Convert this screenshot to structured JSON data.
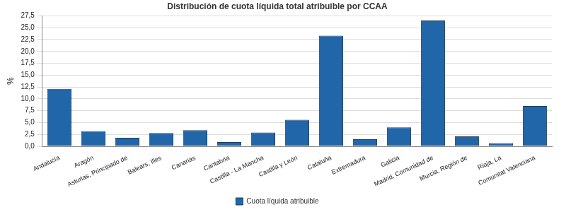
{
  "chart_data": {
    "type": "bar",
    "title": "Distribución de cuota líquida total atribuible por CCAA",
    "y_label": "%",
    "categories": [
      "Andalucía",
      "Aragón",
      "Asturias, Principado de",
      "Balears, Illes",
      "Canarias",
      "Cantabria",
      "Castilla - La Mancha",
      "Castilla y León",
      "Cataluña",
      "Extremadura",
      "Galicia",
      "Madrid, Comunidad de",
      "Murcia, Región de",
      "Rioja, La",
      "Comunitat Valenciana"
    ],
    "series": [
      {
        "name": "Cuota líquida atribuible",
        "color": "#2166a8",
        "values": [
          12.1,
          3.2,
          1.8,
          2.8,
          3.4,
          0.9,
          2.9,
          5.6,
          23.3,
          1.5,
          4.0,
          26.5,
          2.1,
          0.7,
          8.5
        ]
      }
    ],
    "ylim": [
      0,
      27.5
    ],
    "yticks": [
      {
        "value": 0,
        "label": "0,0"
      },
      {
        "value": 2.5,
        "label": "2,5"
      },
      {
        "value": 5,
        "label": "5,0"
      },
      {
        "value": 7.5,
        "label": "7,5"
      },
      {
        "value": 10,
        "label": "10,0"
      },
      {
        "value": 12.5,
        "label": "12,5"
      },
      {
        "value": 15,
        "label": "15,0"
      },
      {
        "value": 17.5,
        "label": "17,5"
      },
      {
        "value": 20,
        "label": "20,0"
      },
      {
        "value": 22.5,
        "label": "22,5"
      },
      {
        "value": 25,
        "label": "25,0"
      },
      {
        "value": 27.5,
        "label": "27,5"
      }
    ],
    "grid": true,
    "legend": "bottom"
  }
}
